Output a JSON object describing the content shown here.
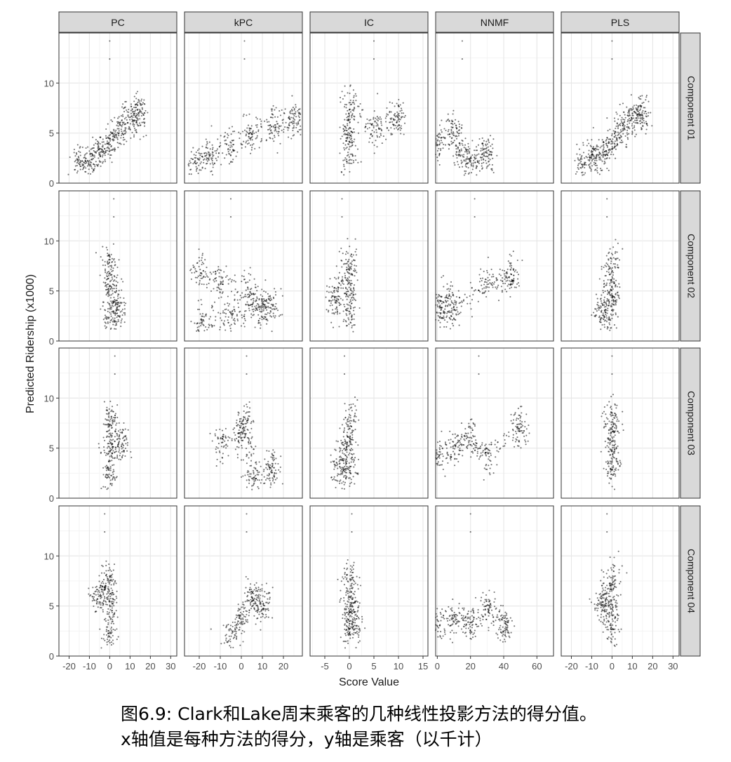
{
  "chart_data": {
    "type": "scatter",
    "xlabel": "Score Value",
    "ylabel": "Predicted Ridership (x1000)",
    "methods": [
      "PC",
      "kPC",
      "IC",
      "NNMF",
      "PLS"
    ],
    "components": [
      "Component 01",
      "Component 02",
      "Component 03",
      "Component 04"
    ],
    "x_ranges": {
      "PC": [
        -25,
        33
      ],
      "kPC": [
        -27,
        29
      ],
      "IC": [
        -8,
        16
      ],
      "NNMF": [
        -1,
        70
      ],
      "PLS": [
        -25,
        33
      ]
    },
    "x_ticks": {
      "PC": [
        "-20",
        "-10",
        "0",
        "10",
        "20",
        "30"
      ],
      "kPC": [
        "-20",
        "-10",
        "0",
        "10",
        "20"
      ],
      "IC": [
        "-5",
        "0",
        "5",
        "10",
        "15"
      ],
      "NNMF": [
        "0",
        "20",
        "40",
        "60"
      ],
      "PLS": [
        "-20",
        "-10",
        "0",
        "10",
        "20",
        "30"
      ]
    },
    "y_range": [
      0,
      15
    ],
    "y_ticks": [
      "0",
      "5",
      "10"
    ],
    "grid": true,
    "point_color": "#000000",
    "panel_strip_color": "#d9d9d9",
    "panels": [
      {
        "method": "PC",
        "component": "Component 01",
        "approx_points": [
          [
            -15,
            2
          ],
          [
            -10,
            2.5
          ],
          [
            -5,
            3
          ],
          [
            0,
            4
          ],
          [
            5,
            5.5
          ],
          [
            10,
            6.5
          ],
          [
            15,
            7
          ]
        ]
      },
      {
        "method": "kPC",
        "component": "Component 01",
        "approx_points": [
          [
            -22,
            2
          ],
          [
            -15,
            2.8
          ],
          [
            -5,
            3.8
          ],
          [
            5,
            4.8
          ],
          [
            15,
            5.8
          ],
          [
            25,
            6.5
          ]
        ]
      },
      {
        "method": "IC",
        "component": "Component 01",
        "approx_points": [
          [
            0,
            2.5
          ],
          [
            0,
            5
          ],
          [
            0,
            8
          ],
          [
            5,
            5.5
          ],
          [
            10,
            6.5
          ]
        ]
      },
      {
        "method": "NNMF",
        "component": "Component 01",
        "approx_points": [
          [
            0,
            4
          ],
          [
            10,
            5.5
          ],
          [
            15,
            3
          ],
          [
            20,
            2
          ],
          [
            30,
            3
          ]
        ]
      },
      {
        "method": "PLS",
        "component": "Component 01",
        "approx_points": [
          [
            -15,
            2
          ],
          [
            -10,
            2.5
          ],
          [
            -5,
            3
          ],
          [
            0,
            4
          ],
          [
            5,
            5.5
          ],
          [
            10,
            6.5
          ],
          [
            15,
            7
          ]
        ]
      },
      {
        "method": "PC",
        "component": "Component 02",
        "approx_points": [
          [
            0,
            2
          ],
          [
            0,
            5
          ],
          [
            0,
            8
          ],
          [
            4,
            3
          ]
        ]
      },
      {
        "method": "kPC",
        "component": "Component 02",
        "approx_points": [
          [
            -20,
            7
          ],
          [
            -10,
            6
          ],
          [
            5,
            5
          ],
          [
            15,
            3.5
          ],
          [
            -20,
            2
          ],
          [
            -5,
            2.5
          ],
          [
            10,
            3
          ]
        ]
      },
      {
        "method": "IC",
        "component": "Component 02",
        "approx_points": [
          [
            0,
            2.5
          ],
          [
            0,
            5
          ],
          [
            0,
            8
          ],
          [
            -3,
            4
          ]
        ]
      },
      {
        "method": "NNMF",
        "component": "Component 02",
        "approx_points": [
          [
            0,
            3
          ],
          [
            5,
            4
          ],
          [
            10,
            3
          ],
          [
            30,
            6
          ],
          [
            45,
            6.5
          ]
        ]
      },
      {
        "method": "PLS",
        "component": "Component 02",
        "approx_points": [
          [
            0,
            2.5
          ],
          [
            0,
            5
          ],
          [
            0,
            8
          ],
          [
            -5,
            3
          ]
        ]
      },
      {
        "method": "PC",
        "component": "Component 03",
        "approx_points": [
          [
            0,
            2
          ],
          [
            0,
            5
          ],
          [
            0,
            8
          ],
          [
            5,
            5
          ]
        ]
      },
      {
        "method": "kPC",
        "component": "Component 03",
        "approx_points": [
          [
            -10,
            5.5
          ],
          [
            0,
            6
          ],
          [
            2,
            8
          ],
          [
            5,
            2
          ],
          [
            15,
            3
          ]
        ]
      },
      {
        "method": "IC",
        "component": "Component 03",
        "approx_points": [
          [
            0,
            2.5
          ],
          [
            0,
            5
          ],
          [
            0,
            8
          ],
          [
            -2,
            3
          ]
        ]
      },
      {
        "method": "NNMF",
        "component": "Component 03",
        "approx_points": [
          [
            0,
            4
          ],
          [
            10,
            5
          ],
          [
            20,
            6
          ],
          [
            30,
            4
          ],
          [
            50,
            7
          ]
        ]
      },
      {
        "method": "PLS",
        "component": "Component 03",
        "approx_points": [
          [
            0,
            2.5
          ],
          [
            0,
            5
          ],
          [
            0,
            8
          ]
        ]
      },
      {
        "method": "PC",
        "component": "Component 04",
        "approx_points": [
          [
            0,
            2
          ],
          [
            0,
            5
          ],
          [
            0,
            8
          ],
          [
            -5,
            6
          ]
        ]
      },
      {
        "method": "kPC",
        "component": "Component 04",
        "approx_points": [
          [
            -5,
            2
          ],
          [
            0,
            3.5
          ],
          [
            5,
            6
          ],
          [
            10,
            5
          ]
        ]
      },
      {
        "method": "IC",
        "component": "Component 04",
        "approx_points": [
          [
            0,
            2.5
          ],
          [
            0,
            5
          ],
          [
            0,
            8
          ],
          [
            1,
            3
          ]
        ]
      },
      {
        "method": "NNMF",
        "component": "Component 04",
        "approx_points": [
          [
            0,
            3
          ],
          [
            10,
            4
          ],
          [
            20,
            3
          ],
          [
            30,
            5
          ],
          [
            40,
            3
          ]
        ]
      },
      {
        "method": "PLS",
        "component": "Component 04",
        "approx_points": [
          [
            0,
            2.5
          ],
          [
            0,
            5
          ],
          [
            0,
            8
          ],
          [
            -5,
            5
          ]
        ]
      }
    ]
  },
  "caption": {
    "line1": "图6.9: Clark和Lake周末乘客的几种线性投影方法的得分值。",
    "line2": "x轴值是每种方法的得分，y轴是乘客（以千计）"
  }
}
